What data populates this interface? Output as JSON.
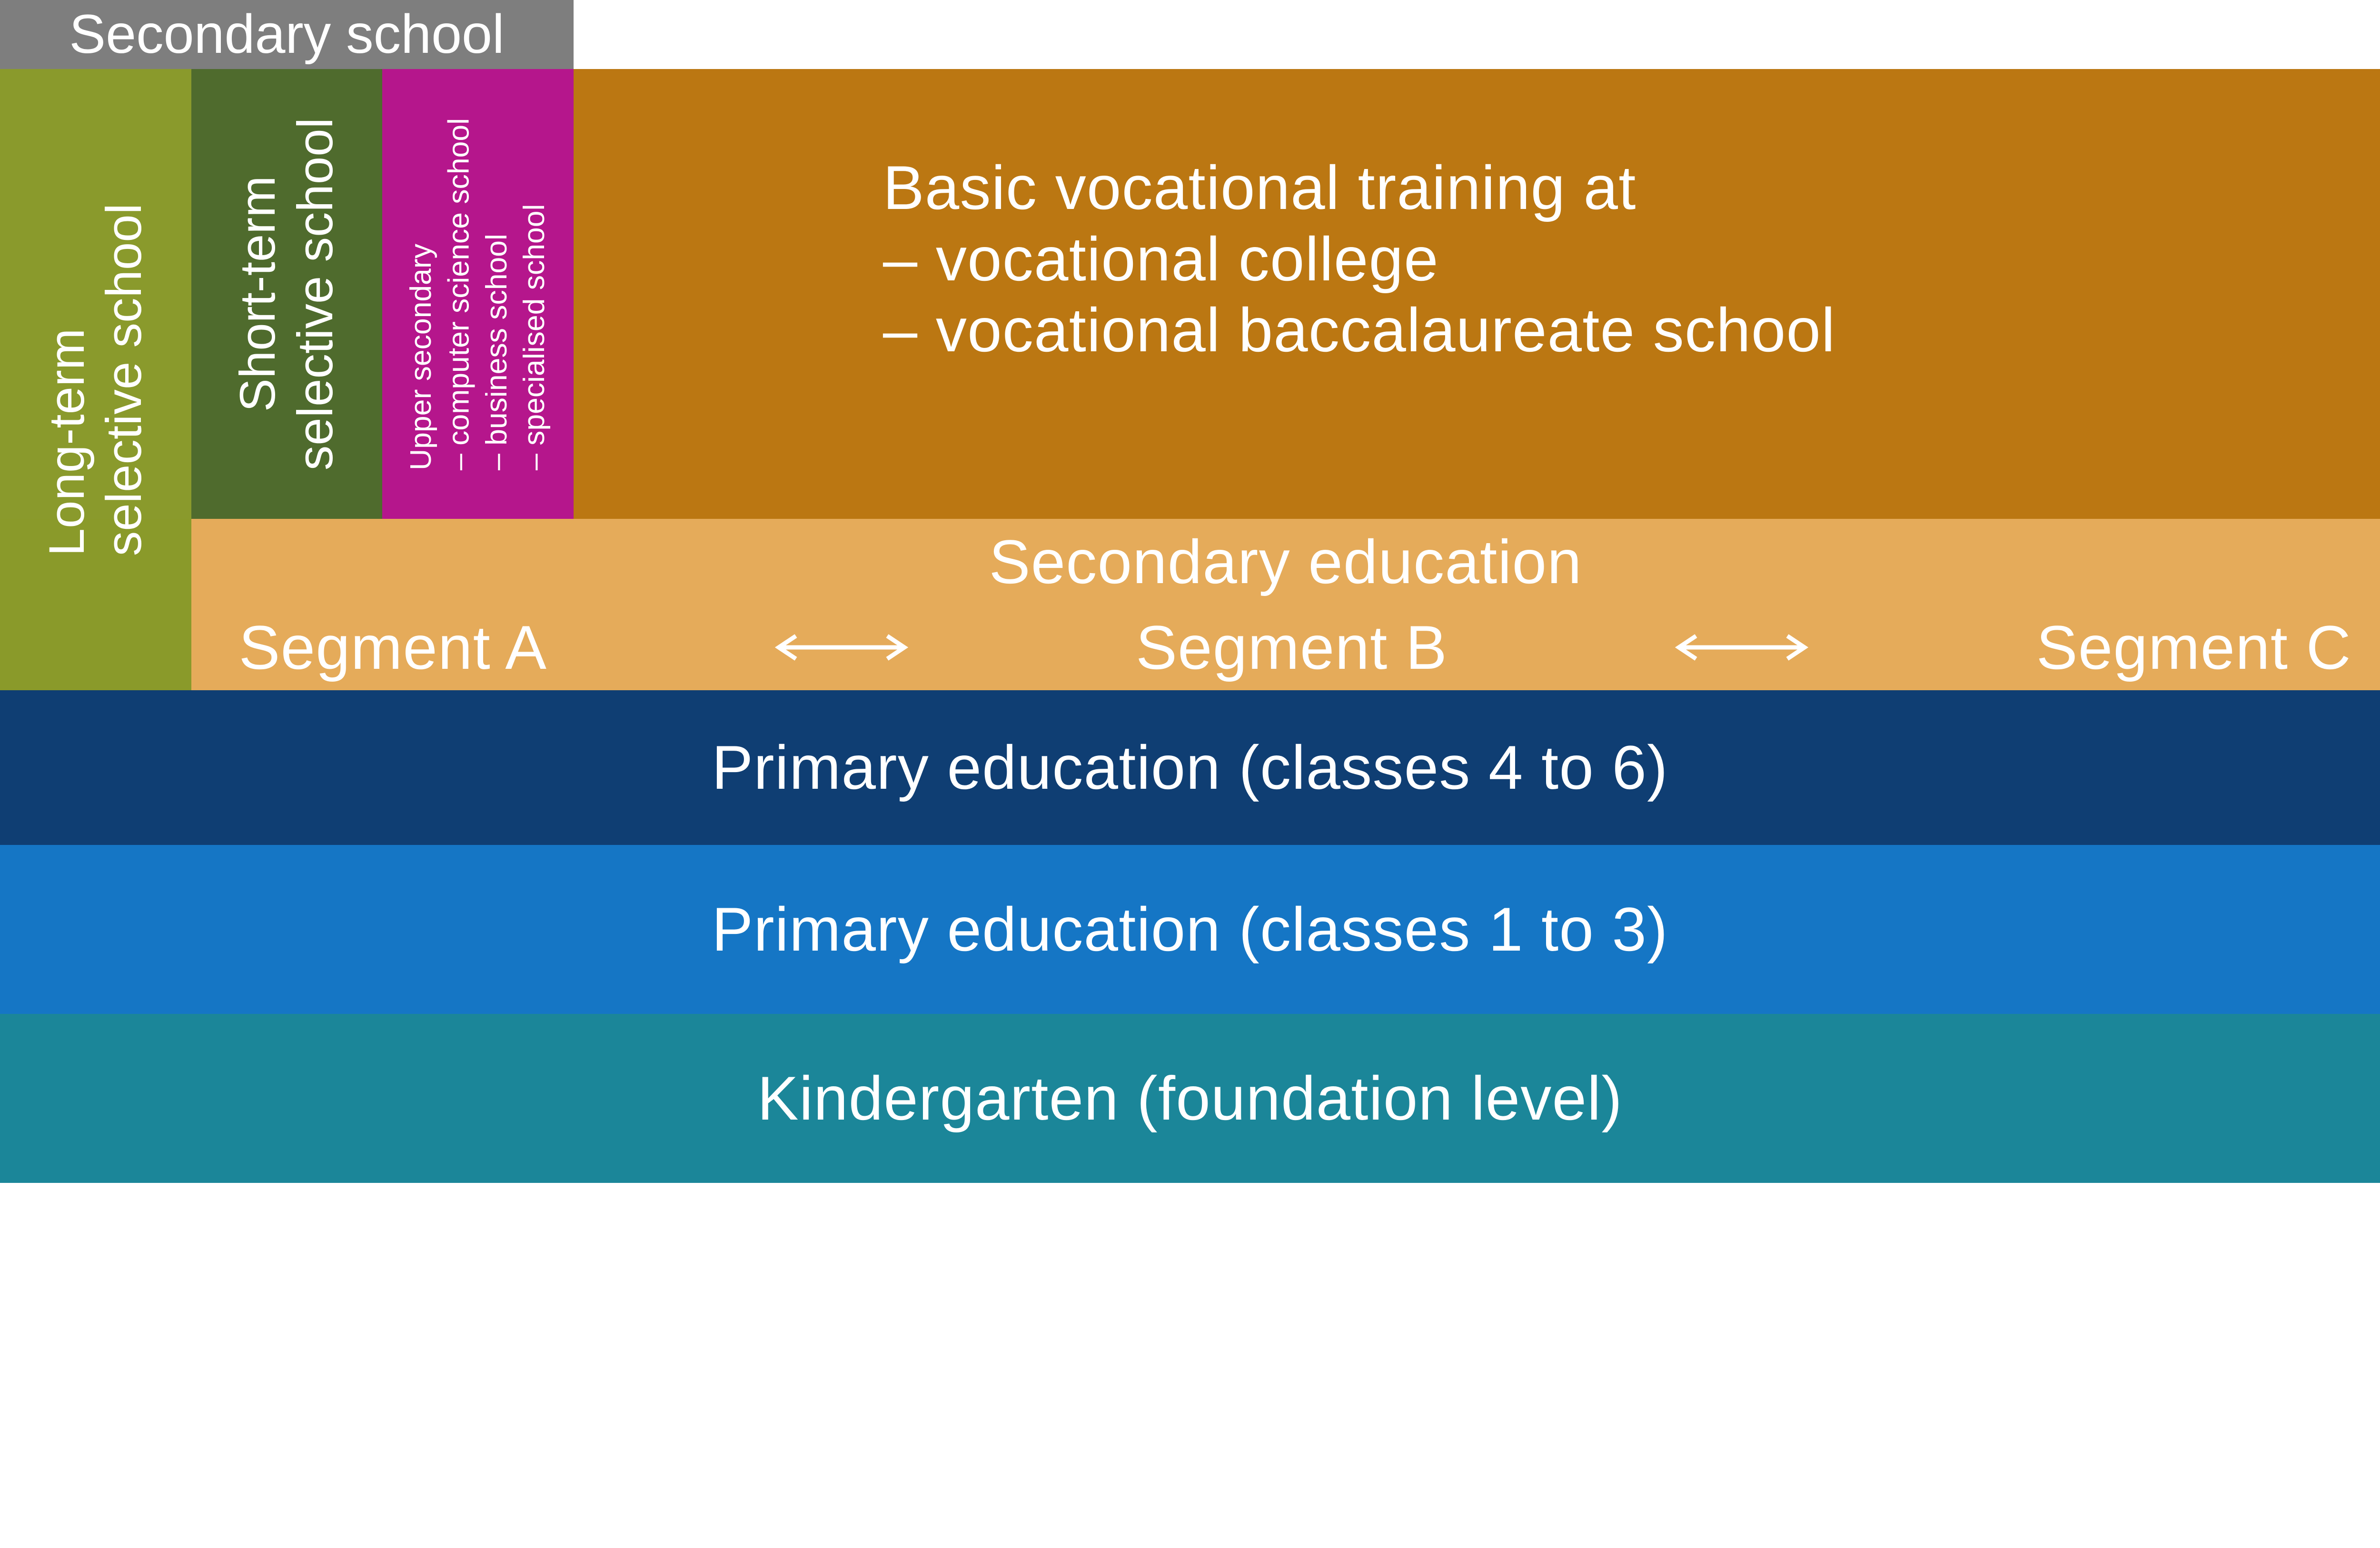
{
  "type": "infographic",
  "layout": "stacked-rows-education-levels",
  "background_color": "#ffffff",
  "text_color": "#ffffff",
  "font_family": "Helvetica Neue, Arial, sans-serif",
  "font_weight": 300,
  "colors": {
    "gray": "#7e7e7e",
    "olive": "#8a9a2c",
    "dark_olive": "#4f6b2d",
    "magenta": "#b5168c",
    "ochre_dark": "#bb7712",
    "ochre_light": "#e5ab5a",
    "navy": "#0f3e73",
    "blue": "#1576c5",
    "teal": "#1b8699"
  },
  "rows": {
    "top_header": {
      "label": "Secondary school",
      "bg": "#7e7e7e",
      "width_pct": 24.1,
      "fontsize_vw": 2.3
    },
    "upper_secondary": {
      "long_term": {
        "label": "Long-term\nselective school",
        "bg": "#8a9a2c",
        "width_pct": 8.033,
        "orientation": "vertical",
        "fontsize_vw": 2.1
      },
      "short_term": {
        "label": "Short-term\nselective school",
        "bg": "#4f6b2d",
        "width_pct": 8.033,
        "orientation": "vertical",
        "fontsize_vw": 2.1
      },
      "specialised": {
        "header": "Upper secondary",
        "items": [
          "– computer science school",
          "– business school",
          "– specialised school"
        ],
        "bg": "#b5168c",
        "width_pct": 8.033,
        "orientation": "vertical",
        "fontsize_vw": 1.25
      },
      "vocational": {
        "lines": [
          "Basic vocational training at",
          "– vocational college",
          "– vocational baccalaureate school"
        ],
        "bg": "#bb7712",
        "width_pct": 75.9,
        "fontsize_vw": 2.6
      }
    },
    "secondary_education": {
      "bg": "#e5ab5a",
      "title": "Secondary education",
      "segments": [
        "Segment A",
        "Segment B",
        "Segment C"
      ],
      "arrow_color": "#ffffff",
      "fontsize_vw": 2.6,
      "long_term_continues": {
        "bg": "#8a9a2c",
        "width_pct": 8.033
      }
    },
    "primary_4_6": {
      "label": "Primary education (classes 4 to 6)",
      "bg": "#0f3e73",
      "fontsize_vw": 2.6
    },
    "primary_1_3": {
      "label": "Primary education (classes 1 to 3)",
      "bg": "#1576c5",
      "fontsize_vw": 2.6
    },
    "kindergarten": {
      "label": "Kindergarten (foundation level)",
      "bg": "#1b8699",
      "fontsize_vw": 2.6
    }
  }
}
